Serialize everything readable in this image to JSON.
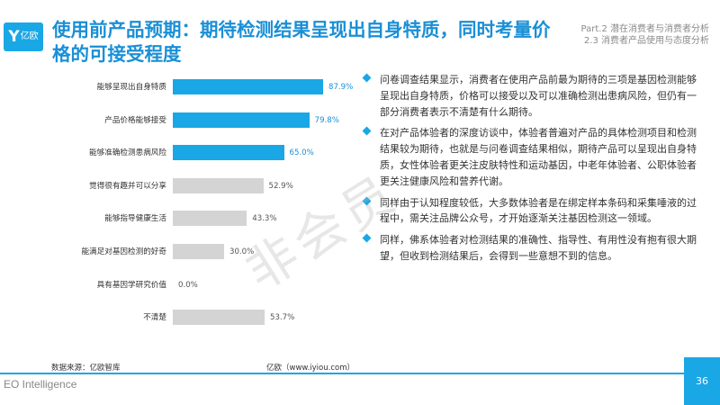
{
  "header": {
    "logo_mark": "Y",
    "logo_text": "亿欧",
    "title": "使用前产品预期：期待检测结果呈现出自身特质，同时考量价格的可接受程度",
    "part_line1": "Part.2 潜在消费者与消费者分析",
    "part_line2": "2.3 消费者产品使用与态度分析"
  },
  "chart_data": {
    "type": "bar",
    "orientation": "horizontal",
    "categories": [
      "能够呈现出自身特质",
      "产品价格能够接受",
      "能够准确检测患病风险",
      "觉得很有趣并可以分享",
      "能够指导健康生活",
      "能满足对基因检测的好奇",
      "具有基因学研究价值",
      "不清楚"
    ],
    "values": [
      87.9,
      79.8,
      65.0,
      52.9,
      43.3,
      30.0,
      0.0,
      53.7
    ],
    "value_labels": [
      "87.9%",
      "79.8%",
      "65.0%",
      "52.9%",
      "43.3%",
      "30.0%",
      "0.0%",
      "53.7%"
    ],
    "highlight_count": 3,
    "colors": {
      "highlight": "#1aa7e6",
      "normal": "#d4d4d4",
      "highlight_text": "#1a8fd6",
      "normal_text": "#555555"
    },
    "xlim": [
      0,
      100
    ],
    "grid": false,
    "legend": "none"
  },
  "bullets": [
    "问卷调查结果显示，消费者在使用产品前最为期待的三项是基因检测能够呈现出自身特质，价格可以接受以及可以准确检测出患病风险，但仍有一部分消费者表示不清楚有什么期待。",
    "在对产品体验者的深度访谈中，体验者普遍对产品的具体检测项目和检测结果较为期待，也就是与问卷调查结果相似，期待产品可以呈现出自身特质，女性体验者更关注皮肤特性和运动基因，中老年体验者、公职体验者更关注健康风险和营养代谢。",
    "同样由于认知程度较低，大多数体验者是在绑定样本条码和采集唾液的过程中，需关注品牌公众号，才开始逐渐关注基因检测这一领域。",
    "同样，佛系体验者对检测结果的准确性、指导性、有用性没有抱有很大期望，但收到检测结果后，会得到一些意想不到的信息。"
  ],
  "watermark": "非会员",
  "footer": {
    "source": "数据来源：亿欧智库",
    "site": "亿欧（www.iyiou.com）",
    "brand": "EO Intelligence",
    "page": "36"
  }
}
